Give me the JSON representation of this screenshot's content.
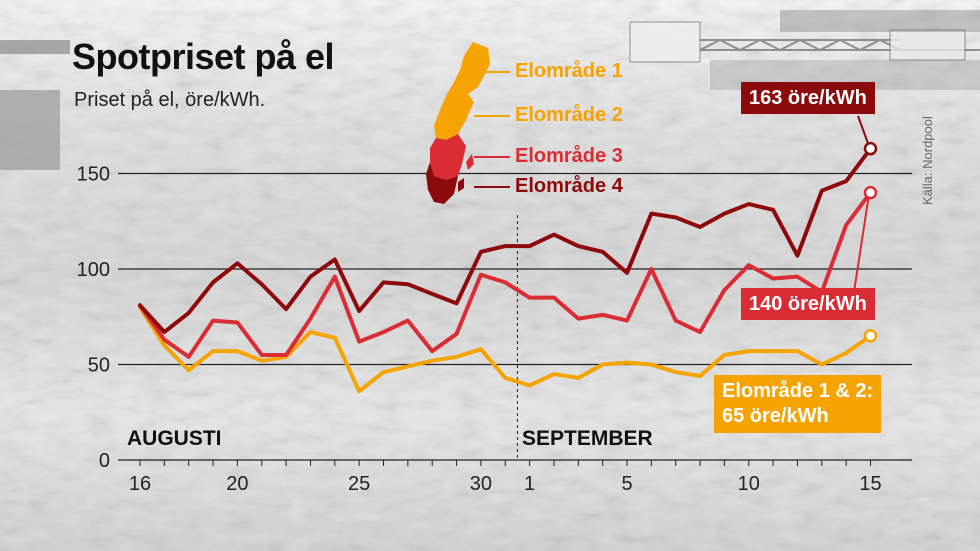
{
  "header": {
    "title": "Spotpriset på el",
    "subtitle": "Priset på el, öre/kWh."
  },
  "source": "Källa: Nordpool",
  "legend": [
    {
      "label": "Elområde 1",
      "color": "#f5a300"
    },
    {
      "label": "Elområde 2",
      "color": "#f5a300"
    },
    {
      "label": "Elområde 3",
      "color": "#da2c35"
    },
    {
      "label": "Elområde 4",
      "color": "#8c0a0b"
    }
  ],
  "end_labels": {
    "e4": "163 öre/kWh",
    "e3": "140 öre/kWh",
    "e12_line1": "Elområde 1 & 2:",
    "e12_line2": "65 öre/kWh"
  },
  "month_labels": [
    "AUGUSTI",
    "SEPTEMBER"
  ],
  "chart_data": {
    "type": "line",
    "title": "Spotpriset på el",
    "subtitle": "Priset på el, öre/kWh.",
    "ylim": [
      0,
      170
    ],
    "yticks": [
      0,
      50,
      100,
      150
    ],
    "x": [
      "08-16",
      "08-17",
      "08-18",
      "08-19",
      "08-20",
      "08-21",
      "08-22",
      "08-23",
      "08-24",
      "08-25",
      "08-26",
      "08-27",
      "08-28",
      "08-29",
      "08-30",
      "08-31",
      "09-01",
      "09-02",
      "09-03",
      "09-04",
      "09-05",
      "09-06",
      "09-07",
      "09-08",
      "09-09",
      "09-10",
      "09-11",
      "09-12",
      "09-13",
      "09-14",
      "09-15"
    ],
    "xticks": [
      {
        "x": "08-16",
        "label": "16"
      },
      {
        "x": "08-20",
        "label": "20"
      },
      {
        "x": "08-25",
        "label": "25"
      },
      {
        "x": "08-30",
        "label": "30"
      },
      {
        "x": "09-01",
        "label": "1"
      },
      {
        "x": "09-05",
        "label": "5"
      },
      {
        "x": "09-10",
        "label": "10"
      },
      {
        "x": "09-15",
        "label": "15"
      }
    ],
    "month_divider": "08-31.5",
    "grid": true,
    "series": [
      {
        "name": "Elområde 4",
        "color": "#8c0a0b",
        "values": [
          81,
          67,
          77,
          93,
          103,
          92,
          79,
          96,
          105,
          78,
          93,
          92,
          87,
          82,
          109,
          112,
          112,
          118,
          112,
          109,
          98,
          129,
          127,
          122,
          129,
          134,
          131,
          107,
          141,
          146,
          163
        ]
      },
      {
        "name": "Elområde 3",
        "color": "#da2c35",
        "values": [
          81,
          63,
          54,
          73,
          72,
          55,
          55,
          74,
          96,
          62,
          67,
          73,
          57,
          66,
          97,
          93,
          85,
          85,
          74,
          76,
          73,
          100,
          73,
          67,
          89,
          102,
          95,
          96,
          88,
          123,
          140
        ]
      },
      {
        "name": "Elområde 1 & 2",
        "color": "#f5a300",
        "values": [
          80,
          60,
          47,
          57,
          57,
          52,
          54,
          67,
          64,
          36,
          46,
          49,
          52,
          54,
          58,
          43,
          39,
          45,
          43,
          50,
          51,
          50,
          46,
          44,
          55,
          57,
          57,
          57,
          50,
          56,
          65
        ]
      }
    ]
  }
}
